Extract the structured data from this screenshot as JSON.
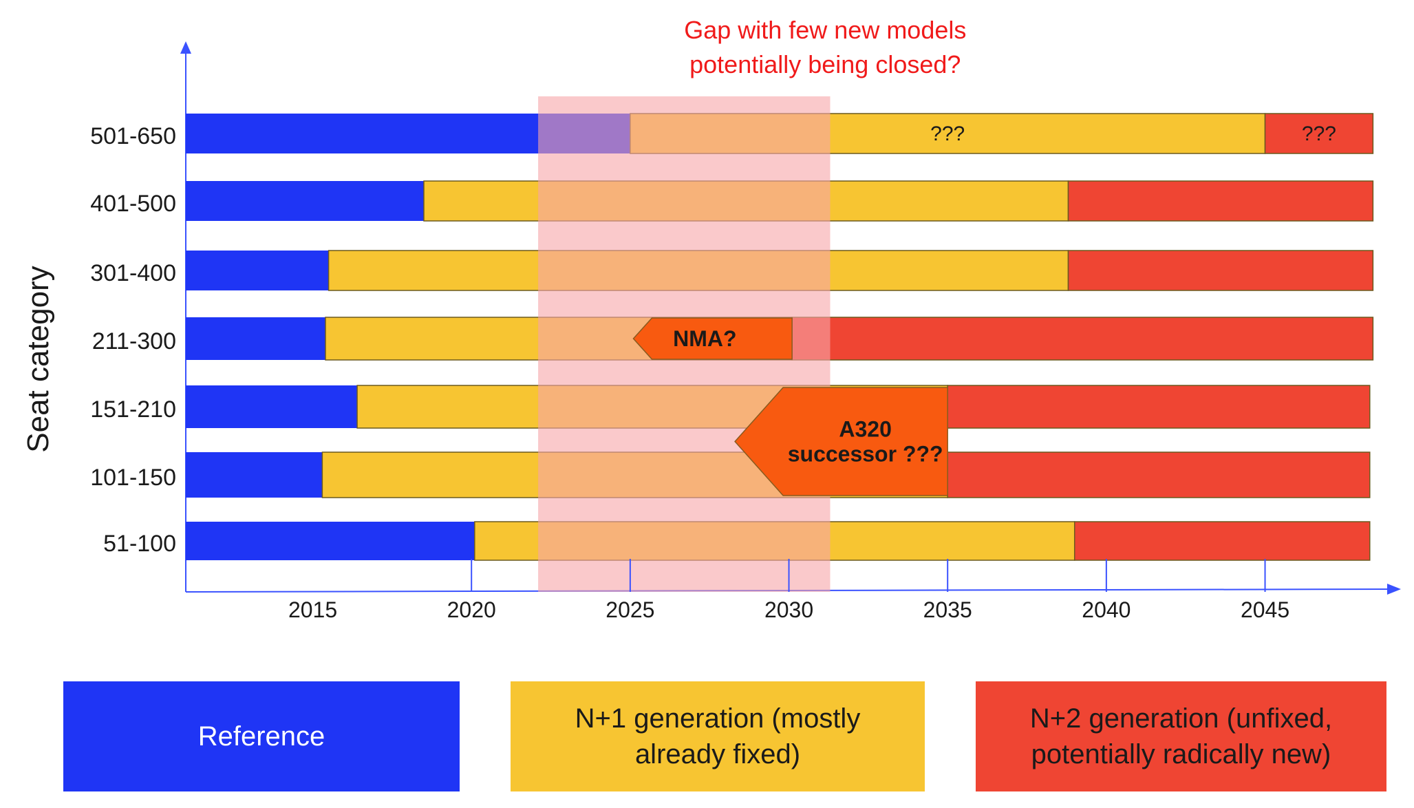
{
  "chart_data": {
    "type": "bar",
    "subtype": "stacked-horizontal-timeline",
    "ylabel": "Seat category",
    "xlim": [
      2011,
      2048.5
    ],
    "xticks": [
      2015,
      2020,
      2025,
      2030,
      2035,
      2040,
      2045
    ],
    "categories": [
      "501-650",
      "401-500",
      "301-400",
      "211-300",
      "151-210",
      "101-150",
      "51-100"
    ],
    "series": [
      {
        "name": "Reference",
        "color": "#1f35f5",
        "segments": [
          [
            2011,
            2025
          ],
          [
            2011,
            2018.5
          ],
          [
            2011,
            2015.5
          ],
          [
            2011,
            2015.4
          ],
          [
            2011,
            2016.4
          ],
          [
            2011,
            2015.3
          ],
          [
            2011,
            2020.1
          ]
        ]
      },
      {
        "name": "N+1 generation (mostly already fixed)",
        "color": "#f7c532",
        "segments": [
          [
            2025,
            2045
          ],
          [
            2018.5,
            2038.8
          ],
          [
            2015.5,
            2038.8
          ],
          [
            2015.4,
            2030.1
          ],
          [
            2016.4,
            2035
          ],
          [
            2015.3,
            2035
          ],
          [
            2020.1,
            2039
          ]
        ]
      },
      {
        "name": "N+2 generation (unfixed, potentially radically new)",
        "color": "#ef4533",
        "segments": [
          [
            2045,
            2048.4
          ],
          [
            2038.8,
            2048.4
          ],
          [
            2038.8,
            2048.4
          ],
          [
            2030.1,
            2048.4
          ],
          [
            2035,
            2048.3
          ],
          [
            2035,
            2048.3
          ],
          [
            2039,
            2048.3
          ]
        ]
      }
    ],
    "annotations": {
      "gap_band": {
        "x_range": [
          2022.1,
          2031.3
        ],
        "color": "#f7a5a8",
        "text": [
          "Gap with few new models",
          "potentially being closed?"
        ],
        "text_color": "#f01a1a"
      },
      "question_marks": [
        {
          "text": "???",
          "category": "501-650",
          "x": 2035
        },
        {
          "text": "???",
          "category": "501-650",
          "x": 2046.7
        }
      ],
      "callouts": [
        {
          "text": [
            "NMA?"
          ],
          "category": "211-300",
          "x_tip": 2025.1,
          "x_end": 2030.1,
          "color": "#f85a10"
        },
        {
          "text": [
            "A320",
            "successor ???"
          ],
          "categories": [
            "151-210",
            "101-150"
          ],
          "x_tip": 2028.3,
          "x_end": 2035,
          "color": "#f85a10"
        }
      ]
    },
    "grid": false,
    "legend": "bottom"
  },
  "legend": {
    "reference": "Reference",
    "n1": "N+1 generation (mostly\nalready fixed)",
    "n2": "N+2 generation (unfixed,\npotentially radically new)"
  }
}
